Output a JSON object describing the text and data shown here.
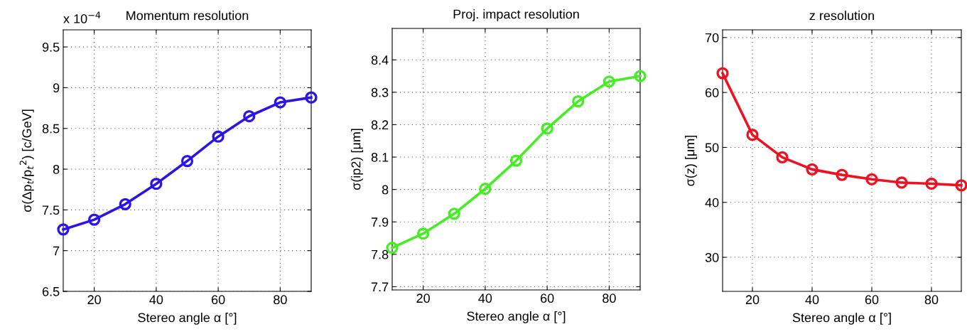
{
  "chart_data": [
    {
      "type": "line",
      "title": "Momentum resolution",
      "xlabel": "Stereo angle α [°]",
      "ylabel": "σ(Δp$_{t}$/p$_{t}$$^{2}$) [c/GeV]",
      "annotations": [
        "x 10$^{−4}$"
      ],
      "x": [
        10,
        20,
        30,
        40,
        50,
        60,
        70,
        80,
        90
      ],
      "xlim": [
        10,
        90
      ],
      "xticks": [
        20,
        40,
        60,
        80
      ],
      "ylim": [
        6.5,
        9.71
      ],
      "yticks": [
        6.5,
        7,
        7.5,
        8,
        8.5,
        9,
        9.5
      ],
      "grid": true,
      "marker": "circle",
      "line_style": "solid",
      "series": [
        {
          "color": "#2a14e6",
          "values": [
            7.26,
            7.38,
            7.57,
            7.82,
            8.1,
            8.4,
            8.65,
            8.82,
            8.88
          ]
        }
      ]
    },
    {
      "type": "line",
      "title": "Proj. impact resolution",
      "xlabel": "Stereo angle α [°]",
      "ylabel": "σ(ip2) [μm]",
      "x": [
        10,
        20,
        30,
        40,
        50,
        60,
        70,
        80,
        90
      ],
      "xlim": [
        10,
        90
      ],
      "xticks": [
        20,
        40,
        60,
        80
      ],
      "ylim": [
        7.69,
        8.497
      ],
      "yticks": [
        7.7,
        7.8,
        7.9,
        8,
        8.1,
        8.2,
        8.3,
        8.4
      ],
      "grid": true,
      "marker": "circle",
      "line_style": "solid",
      "series": [
        {
          "color": "#44ee22",
          "values": [
            7.82,
            7.864,
            7.925,
            8.002,
            8.089,
            8.188,
            8.272,
            8.333,
            8.35
          ]
        }
      ]
    },
    {
      "type": "line",
      "title": "z resolution",
      "xlabel": "Stereo angle α [°]",
      "ylabel": "σ(z) [μm]",
      "x": [
        10,
        20,
        30,
        40,
        50,
        60,
        70,
        80,
        90
      ],
      "xlim": [
        10,
        90
      ],
      "xticks": [
        20,
        40,
        60,
        80
      ],
      "ylim": [
        23.8,
        71.4
      ],
      "yticks": [
        30,
        40,
        50,
        60,
        70
      ],
      "grid": true,
      "marker": "circle",
      "line_style": "solid",
      "series": [
        {
          "color": "#ee1122",
          "values": [
            63.5,
            52.3,
            48.2,
            46.0,
            45.0,
            44.2,
            43.6,
            43.4,
            43.1
          ]
        }
      ]
    }
  ]
}
